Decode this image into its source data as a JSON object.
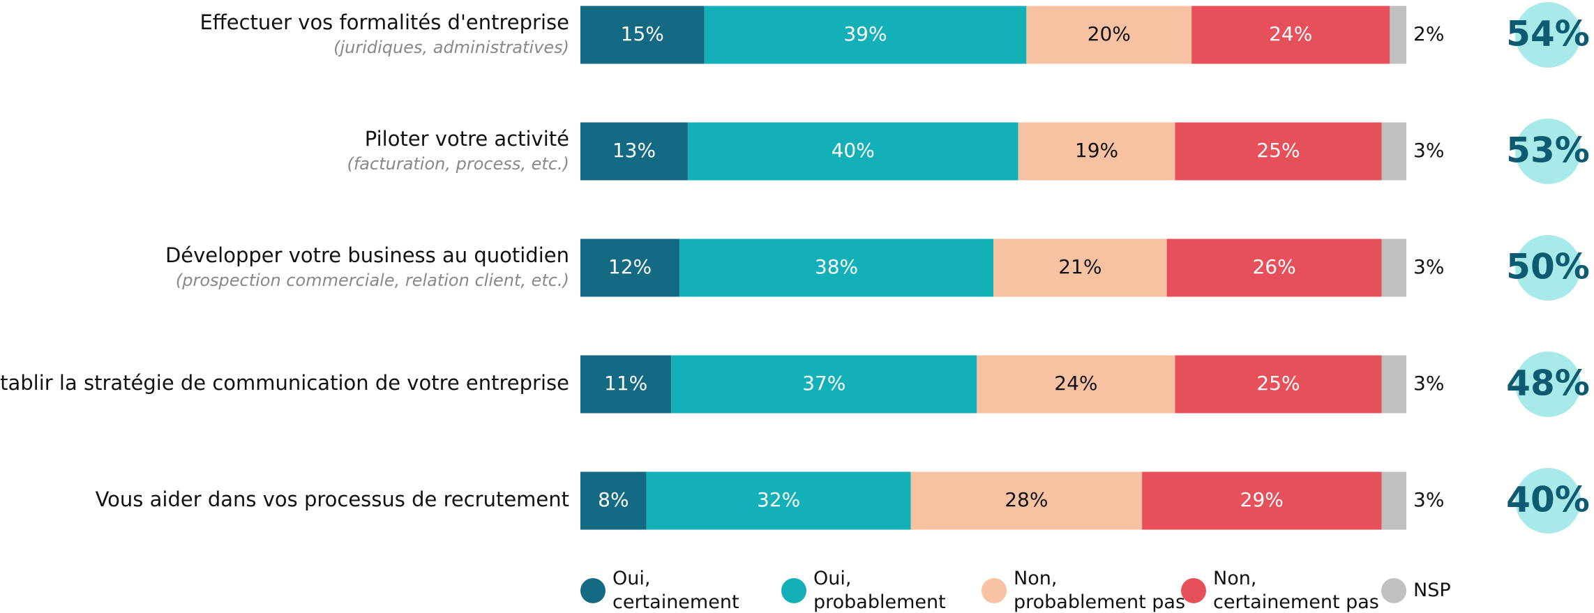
{
  "chart_data": {
    "type": "stacked-bar",
    "categories": [
      "Effectuer vos formalités d'entreprise",
      "Piloter votre activité",
      "Développer votre business au quotidien",
      "Etablir la stratégie de communication de votre entreprise",
      "Vous aider dans vos processus de recrutement"
    ],
    "category_notes": [
      "(juridiques, administratives)",
      "(facturation, process, etc.)",
      "(prospection commerciale, relation client, etc.)",
      null,
      null
    ],
    "series": [
      {
        "name": "Oui,\ncertainement",
        "color": "#136a82",
        "label_color": "#ffffff",
        "values": [
          15,
          13,
          12,
          11,
          8
        ],
        "value_labels": [
          "15%",
          "13%",
          "12%",
          "11%",
          "8%"
        ]
      },
      {
        "name": "Oui,\nprobablement",
        "color": "#14b0b8",
        "label_color": "#ffffff",
        "values": [
          39,
          40,
          38,
          37,
          32
        ],
        "value_labels": [
          "39%",
          "40%",
          "38%",
          "37%",
          "32%"
        ]
      },
      {
        "name": "Non,\nprobablement pas",
        "color": "#f7c2a2",
        "label_color": "#111111",
        "values": [
          20,
          19,
          21,
          24,
          28
        ],
        "value_labels": [
          "20%",
          "19%",
          "21%",
          "24%",
          "28%"
        ]
      },
      {
        "name": "Non,\ncertainement pas",
        "color": "#e6505a",
        "label_color": "#ffffff",
        "values": [
          24,
          25,
          26,
          25,
          29
        ],
        "value_labels": [
          "24%",
          "25%",
          "26%",
          "25%",
          "29%"
        ]
      },
      {
        "name": "NSP",
        "color": "#c0c0c0",
        "label_color": "#111111",
        "values": [
          2,
          3,
          3,
          3,
          3
        ],
        "value_labels": [
          "2%",
          "3%",
          "3%",
          "3%",
          "3%"
        ]
      }
    ],
    "totals": {
      "color": "#a8eaea",
      "label_color": "#0e5a70",
      "values": [
        54,
        53,
        50,
        48,
        40
      ],
      "value_labels": [
        "54%",
        "53%",
        "50%",
        "48%",
        "40%"
      ]
    }
  }
}
